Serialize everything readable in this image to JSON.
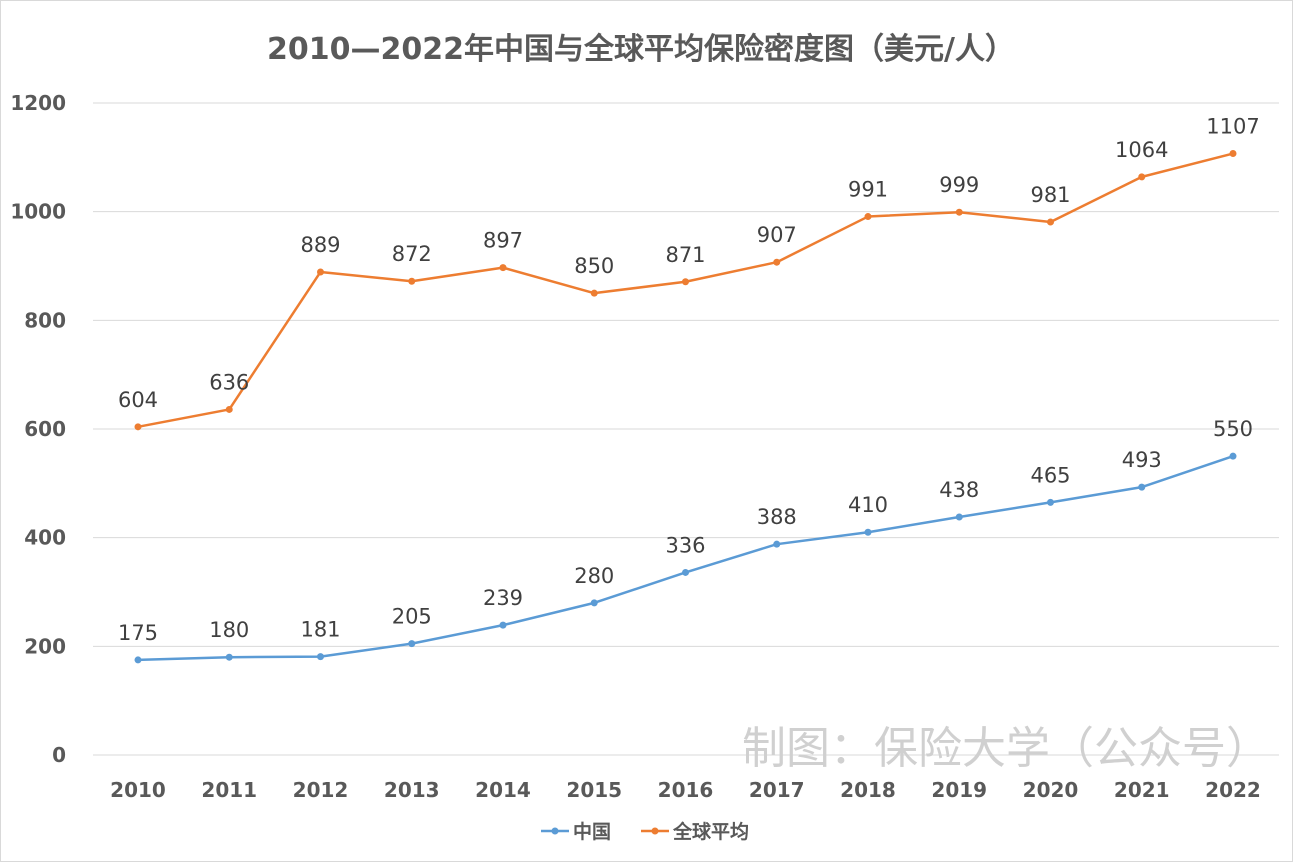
{
  "chart_data": {
    "type": "line",
    "title": "2010—2022年中国与全球平均保险密度图（美元/人）",
    "xlabel": "",
    "ylabel": "",
    "categories": [
      "2010",
      "2011",
      "2012",
      "2013",
      "2014",
      "2015",
      "2016",
      "2017",
      "2018",
      "2019",
      "2020",
      "2021",
      "2022"
    ],
    "ylim": [
      0,
      1200
    ],
    "yticks": [
      "0",
      "200",
      "400",
      "600",
      "800",
      "1000",
      "1200"
    ],
    "grid": true,
    "legend": "bottom",
    "series": [
      {
        "name": "中国",
        "color": "#5B9BD5",
        "values": [
          175,
          180,
          181,
          205,
          239,
          280,
          336,
          388,
          410,
          438,
          465,
          493,
          550
        ]
      },
      {
        "name": "全球平均",
        "color": "#ED7D31",
        "values": [
          604,
          636,
          889,
          872,
          897,
          850,
          871,
          907,
          991,
          999,
          981,
          1064,
          1107
        ]
      }
    ],
    "watermark": "制图：保险大学（公众号）"
  }
}
